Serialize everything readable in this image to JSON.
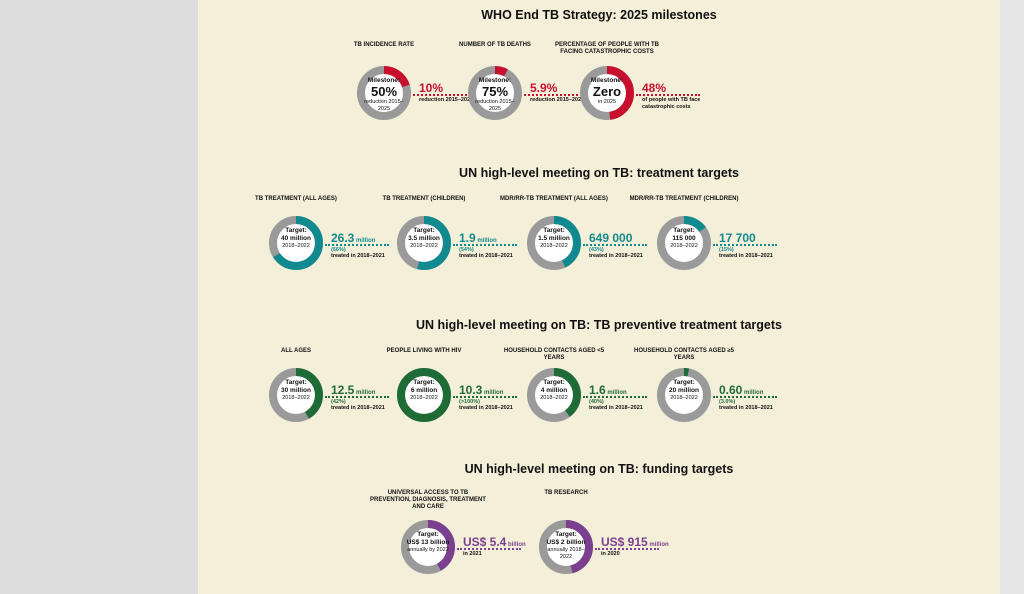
{
  "colors": {
    "red": "#c8102e",
    "teal": "#118a8f",
    "green": "#1f6b36",
    "purple": "#7b3f8f",
    "grey": "#9a9a9a"
  },
  "titles": {
    "who": "WHO End TB Strategy: 2025 milestones",
    "treatment": "UN high-level meeting on TB: treatment targets",
    "preventive": "UN high-level meeting on TB: TB preventive treatment targets",
    "funding": "UN high-level meeting on TB: funding targets"
  },
  "chart_data": [
    {
      "type": "pie",
      "title": "WHO End TB Strategy: 2025 milestones",
      "items": [
        {
          "label": "TB INCIDENCE RATE",
          "target_top": "Milestone:",
          "target_big": "50%",
          "target_bottom": "reduction 2015–2025",
          "achieved": "10%",
          "achieved_unit": "",
          "achieved_pct": "",
          "achieved_sub": "reduction 2015–2021",
          "fraction": 0.2
        },
        {
          "label": "NUMBER OF TB DEATHS",
          "target_top": "Milestone:",
          "target_big": "75%",
          "target_bottom": "reduction 2015–2025",
          "achieved": "5.9%",
          "achieved_unit": "",
          "achieved_pct": "",
          "achieved_sub": "reduction 2015–2021",
          "fraction": 0.079
        },
        {
          "label": "PERCENTAGE OF PEOPLE WITH TB FACING CATASTROPHIC COSTS",
          "target_top": "Milestone:",
          "target_big": "Zero",
          "target_bottom": "in 2025",
          "achieved": "48%",
          "achieved_unit": "",
          "achieved_pct": "",
          "achieved_sub": "of people with TB face catastrophic costs",
          "fraction": 0.48
        }
      ]
    },
    {
      "type": "pie",
      "title": "UN high-level meeting on TB: treatment targets",
      "items": [
        {
          "label": "TB TREATMENT (ALL AGES)",
          "target_top": "Target:",
          "target_big": "40 million",
          "target_bottom": "2018–2022",
          "achieved": "26.3",
          "achieved_unit": "million",
          "achieved_pct": "(66%)",
          "achieved_sub": "treated in 2018–2021",
          "fraction": 0.66
        },
        {
          "label": "TB TREATMENT (CHILDREN)",
          "target_top": "Target:",
          "target_big": "3.5 million",
          "target_bottom": "2018–2022",
          "achieved": "1.9",
          "achieved_unit": "million",
          "achieved_pct": "(54%)",
          "achieved_sub": "treated in 2018–2021",
          "fraction": 0.54
        },
        {
          "label": "MDR/RR-TB TREATMENT (ALL AGES)",
          "target_top": "Target:",
          "target_big": "1.5 million",
          "target_bottom": "2018–2022",
          "achieved": "649 000",
          "achieved_unit": "",
          "achieved_pct": "(43%)",
          "achieved_sub": "treated in 2018–2021",
          "fraction": 0.43
        },
        {
          "label": "MDR/RR-TB TREATMENT (CHILDREN)",
          "target_top": "Target:",
          "target_big": "115 000",
          "target_bottom": "2018–2022",
          "achieved": "17 700",
          "achieved_unit": "",
          "achieved_pct": "(15%)",
          "achieved_sub": "treated in 2018–2021",
          "fraction": 0.15
        }
      ]
    },
    {
      "type": "pie",
      "title": "UN high-level meeting on TB: TB preventive treatment targets",
      "items": [
        {
          "label": "ALL AGES",
          "target_top": "Target:",
          "target_big": "30 million",
          "target_bottom": "2018–2022",
          "achieved": "12.5",
          "achieved_unit": "million",
          "achieved_pct": "(42%)",
          "achieved_sub": "treated in 2018–2021",
          "fraction": 0.42
        },
        {
          "label": "PEOPLE LIVING WITH HIV",
          "target_top": "Target:",
          "target_big": "6 million",
          "target_bottom": "2018–2022",
          "achieved": "10.3",
          "achieved_unit": "million",
          "achieved_pct": "(>100%)",
          "achieved_sub": "treated in 2018–2021",
          "fraction": 1.0
        },
        {
          "label": "HOUSEHOLD CONTACTS AGED <5 YEARS",
          "target_top": "Target:",
          "target_big": "4 million",
          "target_bottom": "2018–2022",
          "achieved": "1.6",
          "achieved_unit": "million",
          "achieved_pct": "(40%)",
          "achieved_sub": "treated in 2018–2021",
          "fraction": 0.4
        },
        {
          "label": "HOUSEHOLD CONTACTS AGED ≥5 YEARS",
          "target_top": "Target:",
          "target_big": "20 million",
          "target_bottom": "2018–2022",
          "achieved": "0.60",
          "achieved_unit": "million",
          "achieved_pct": "(3.0%)",
          "achieved_sub": "treated in 2018–2021",
          "fraction": 0.03
        }
      ]
    },
    {
      "type": "pie",
      "title": "UN high-level meeting on TB: funding targets",
      "items": [
        {
          "label": "UNIVERSAL ACCESS TO TB PREVENTION, DIAGNOSIS, TREATMENT AND CARE",
          "target_top": "Target:",
          "target_big": "US$ 13 billion",
          "target_bottom": "annually by 2022",
          "achieved": "US$ 5.4",
          "achieved_unit": "billion",
          "achieved_pct": "",
          "achieved_sub": "in 2021",
          "fraction": 0.42
        },
        {
          "label": "TB RESEARCH",
          "target_top": "Target:",
          "target_big": "US$ 2 billion",
          "target_bottom": "annually 2018–2022",
          "achieved": "US$ 915",
          "achieved_unit": "million",
          "achieved_pct": "",
          "achieved_sub": "in 2020",
          "fraction": 0.46
        }
      ]
    }
  ]
}
